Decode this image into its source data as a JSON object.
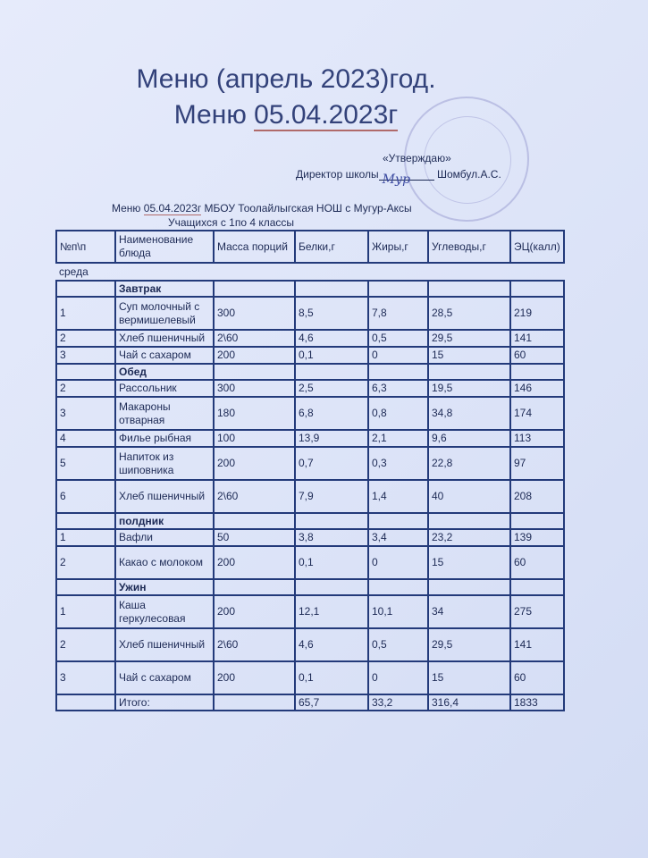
{
  "title": "Меню (апрель  2023)год.",
  "subtitle_prefix": "Меню ",
  "subtitle_date": "05.04.2023г",
  "approval": {
    "label": "«Утверждаю»",
    "director_label": "Директор школы",
    "signature": "Мур",
    "director_name": "Шомбул.А.С."
  },
  "menu_line": {
    "prefix": "Меню ",
    "date": "05.04.2023г",
    "rest": " МБОУ  Тоолайлыгская НОШ  с Мугур-Аксы"
  },
  "students": "Учащихся с 1по 4 классы",
  "weekday": "среда",
  "columns": [
    "№п\\п",
    "Наименование блюда",
    "Масса порций",
    "Белки,г",
    "Жиры,г",
    "Углеводы,г",
    "ЭЦ(калл)"
  ],
  "rows": [
    {
      "type": "section",
      "cells": [
        "",
        "Завтрак",
        "",
        "",
        "",
        "",
        ""
      ]
    },
    {
      "type": "item",
      "cells": [
        "1",
        "Суп молочный с вермишелевый",
        "300",
        "8,5",
        "7,8",
        "28,5",
        "219"
      ]
    },
    {
      "type": "item",
      "cells": [
        "2",
        "Хлеб пшеничный",
        "2\\60",
        "4,6",
        "0,5",
        "29,5",
        "141"
      ]
    },
    {
      "type": "item",
      "cells": [
        "3",
        "Чай с сахаром",
        "200",
        "0,1",
        "0",
        "15",
        "60"
      ]
    },
    {
      "type": "section",
      "cells": [
        "",
        "Обед",
        "",
        "",
        "",
        "",
        ""
      ]
    },
    {
      "type": "item",
      "cells": [
        "2",
        "Рассольник",
        "300",
        "2,5",
        "6,3",
        "19,5",
        "146"
      ]
    },
    {
      "type": "item",
      "cells": [
        "3",
        "Макароны отварная",
        "180",
        "6,8",
        "0,8",
        "34,8",
        "174"
      ]
    },
    {
      "type": "item",
      "cells": [
        "4",
        "Филье рыбная",
        "100",
        "13,9",
        "2,1",
        "9,6",
        "113"
      ]
    },
    {
      "type": "item",
      "cells": [
        "5",
        "Напиток из шиповника",
        "200",
        "0,7",
        "0,3",
        "22,8",
        "97"
      ]
    },
    {
      "type": "item",
      "cells": [
        "6",
        "Хлеб пшеничный",
        "2\\60",
        "7,9",
        "1,4",
        "40",
        "208"
      ]
    },
    {
      "type": "section",
      "cells": [
        "",
        "полдник",
        "",
        "",
        "",
        "",
        ""
      ]
    },
    {
      "type": "item",
      "cells": [
        "1",
        "Вафли",
        "50",
        "3,8",
        "3,4",
        "23,2",
        "139"
      ]
    },
    {
      "type": "item",
      "cells": [
        "2",
        "Какао с молоком",
        "200",
        "0,1",
        "0",
        "15",
        "60"
      ]
    },
    {
      "type": "section",
      "cells": [
        "",
        "Ужин",
        "",
        "",
        "",
        "",
        ""
      ]
    },
    {
      "type": "item",
      "cells": [
        "1",
        "Каша геркулесовая",
        "200",
        "12,1",
        "10,1",
        "34",
        "275"
      ]
    },
    {
      "type": "item",
      "cells": [
        "2",
        "Хлеб пшеничный",
        "2\\60",
        "4,6",
        "0,5",
        "29,5",
        "141"
      ]
    },
    {
      "type": "item",
      "cells": [
        "3",
        "Чай с сахаром",
        "200",
        "0,1",
        "0",
        "15",
        "60"
      ]
    },
    {
      "type": "total",
      "cells": [
        "",
        "Итого:",
        "",
        "65,7",
        "33,2",
        "316,4",
        "1833"
      ]
    }
  ]
}
